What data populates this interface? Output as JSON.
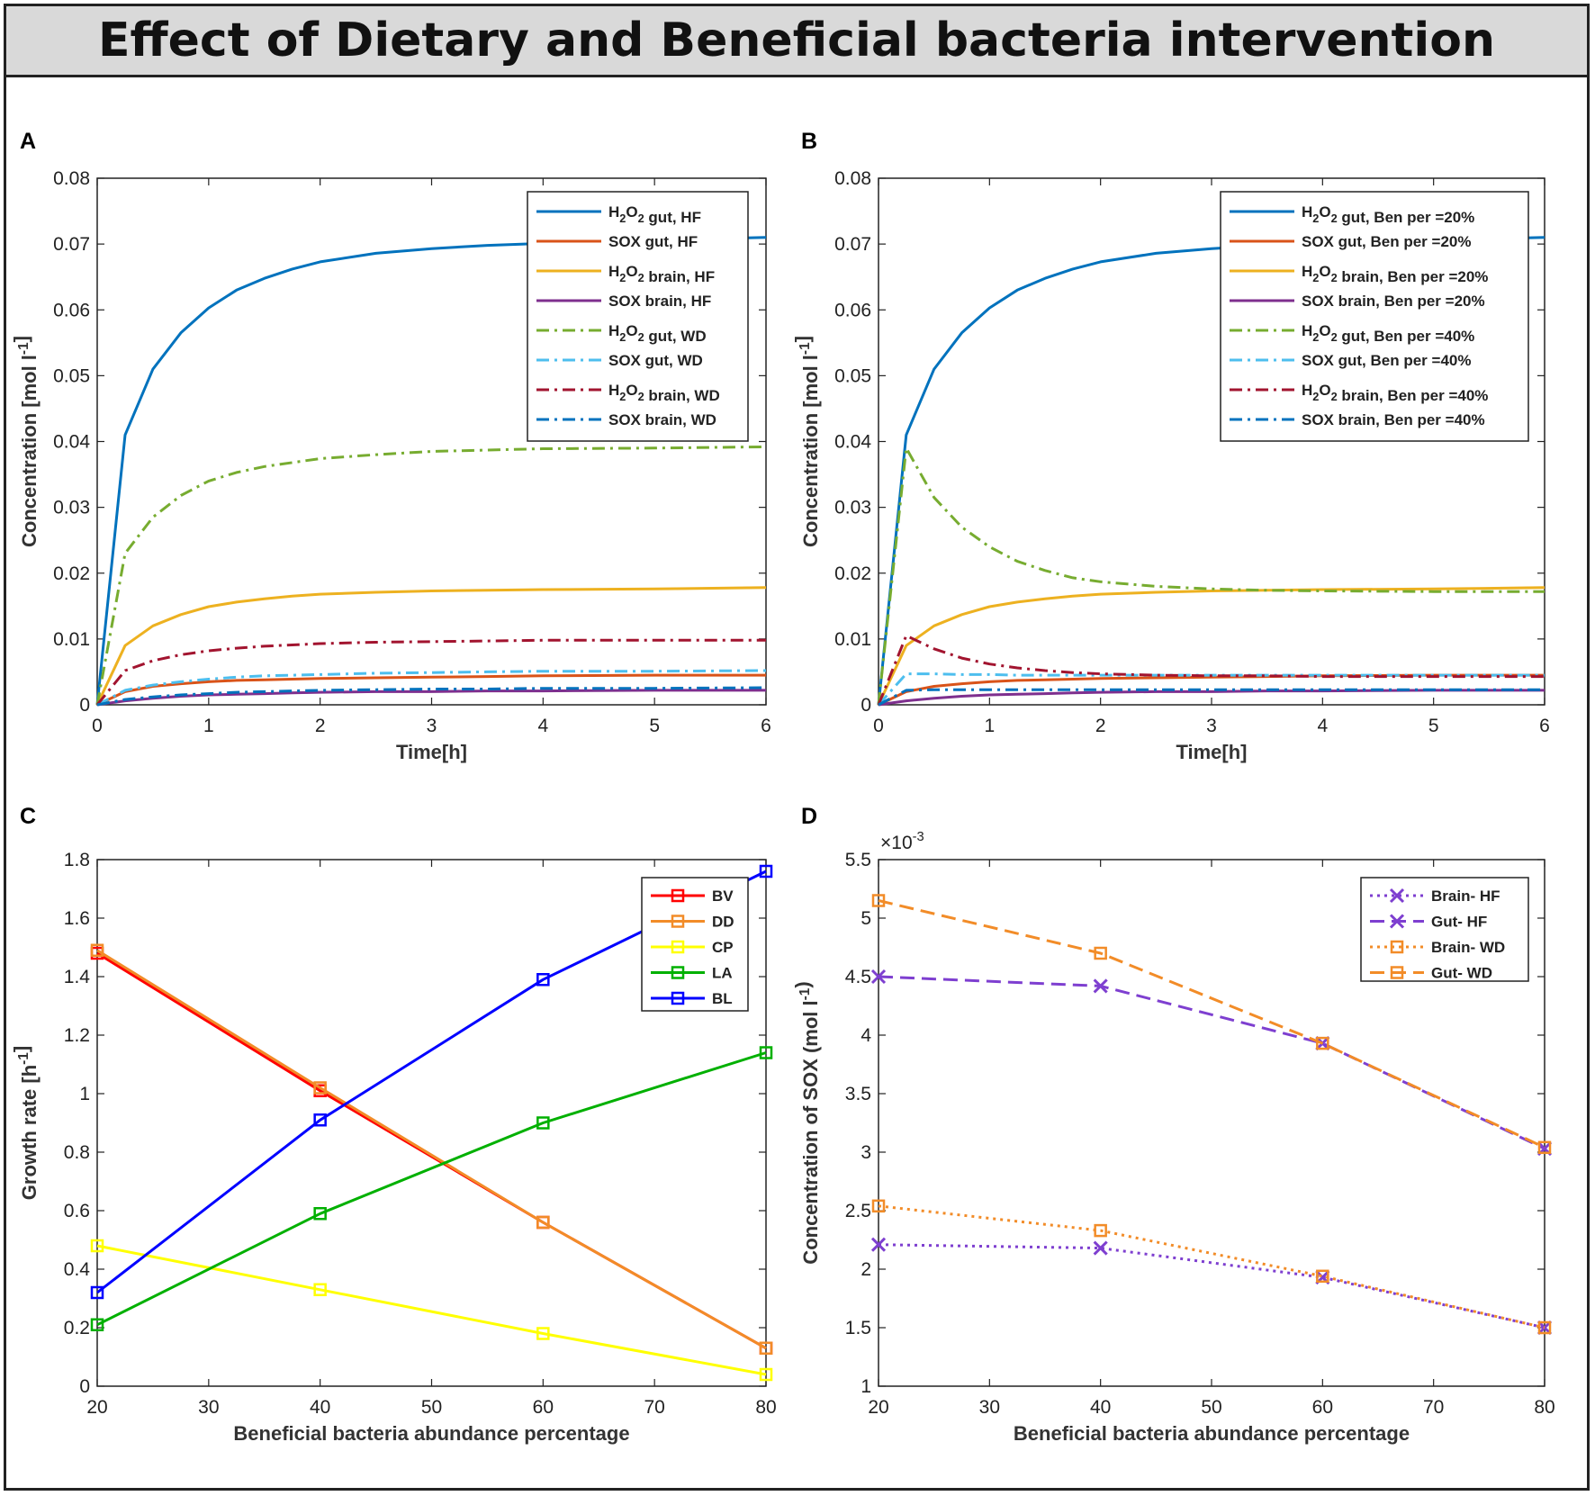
{
  "title": "Effect of Dietary and Beneficial bacteria intervention",
  "panels": [
    "A",
    "B",
    "C",
    "D"
  ],
  "chart_data": [
    {
      "panel": "A",
      "type": "line",
      "xlabel": "Time[h]",
      "ylabel": "Concentration [mol l-1]",
      "xlim": [
        0,
        6
      ],
      "ylim": [
        0,
        0.08
      ],
      "xticks": [
        "0",
        "1",
        "2",
        "3",
        "4",
        "5",
        "6"
      ],
      "yticks": [
        "0",
        "0.01",
        "0.02",
        "0.03",
        "0.04",
        "0.05",
        "0.06",
        "0.07",
        "0.08"
      ],
      "legend_position": "top-right",
      "x": [
        0,
        0.25,
        0.5,
        0.75,
        1,
        1.25,
        1.5,
        1.75,
        2,
        2.5,
        3,
        3.5,
        4,
        5,
        6
      ],
      "series": [
        {
          "name": "H2O2 gut, HF",
          "color": "#0072BD",
          "style": "solid",
          "values": [
            0,
            0.041,
            0.051,
            0.0565,
            0.0603,
            0.063,
            0.0648,
            0.0662,
            0.0673,
            0.0686,
            0.0693,
            0.0698,
            0.0701,
            0.0706,
            0.071
          ]
        },
        {
          "name": "SOX gut, HF",
          "color": "#D95319",
          "style": "solid",
          "values": [
            0,
            0.002,
            0.0028,
            0.0032,
            0.0035,
            0.0037,
            0.0038,
            0.0039,
            0.004,
            0.0041,
            0.0042,
            0.0043,
            0.0044,
            0.0045,
            0.0045
          ]
        },
        {
          "name": "H2O2 brain, HF",
          "color": "#EDB120",
          "style": "solid",
          "values": [
            0,
            0.009,
            0.012,
            0.0137,
            0.0149,
            0.0156,
            0.0161,
            0.0165,
            0.0168,
            0.0171,
            0.0173,
            0.0174,
            0.0175,
            0.0176,
            0.0178
          ]
        },
        {
          "name": "SOX brain, HF",
          "color": "#7E2F8E",
          "style": "solid",
          "values": [
            0,
            0.0006,
            0.001,
            0.0013,
            0.0015,
            0.0016,
            0.0017,
            0.0018,
            0.0019,
            0.002,
            0.002,
            0.0021,
            0.0021,
            0.0022,
            0.0022
          ]
        },
        {
          "name": "H2O2 gut, WD",
          "color": "#77AC30",
          "style": "dashdot",
          "values": [
            0,
            0.023,
            0.0285,
            0.0318,
            0.034,
            0.0353,
            0.0362,
            0.0368,
            0.0374,
            0.038,
            0.0385,
            0.0387,
            0.0389,
            0.039,
            0.0392
          ]
        },
        {
          "name": "SOX gut, WD",
          "color": "#4DBEEE",
          "style": "dashdot",
          "values": [
            0,
            0.0022,
            0.003,
            0.0035,
            0.0039,
            0.0042,
            0.0044,
            0.0045,
            0.0046,
            0.0048,
            0.0049,
            0.005,
            0.0051,
            0.0051,
            0.0052
          ]
        },
        {
          "name": "H2O2 brain, WD",
          "color": "#A2142F",
          "style": "dashdot",
          "values": [
            0,
            0.0052,
            0.0067,
            0.0076,
            0.0082,
            0.0086,
            0.0089,
            0.0091,
            0.0093,
            0.0095,
            0.0096,
            0.0097,
            0.0098,
            0.0098,
            0.0098
          ]
        },
        {
          "name": "SOX brain, WD",
          "color": "#0072BD",
          "style": "dashdot",
          "values": [
            0,
            0.0008,
            0.0012,
            0.0015,
            0.0017,
            0.0019,
            0.002,
            0.0021,
            0.0022,
            0.0023,
            0.0024,
            0.0024,
            0.0025,
            0.0025,
            0.0026
          ]
        }
      ]
    },
    {
      "panel": "B",
      "type": "line",
      "xlabel": "Time[h]",
      "ylabel": "Concentration [mol l-1]",
      "xlim": [
        0,
        6
      ],
      "ylim": [
        0,
        0.08
      ],
      "xticks": [
        "0",
        "1",
        "2",
        "3",
        "4",
        "5",
        "6"
      ],
      "yticks": [
        "0",
        "0.01",
        "0.02",
        "0.03",
        "0.04",
        "0.05",
        "0.06",
        "0.07",
        "0.08"
      ],
      "legend_position": "top-right",
      "x": [
        0,
        0.25,
        0.5,
        0.75,
        1,
        1.25,
        1.5,
        1.75,
        2,
        2.5,
        3,
        3.5,
        4,
        5,
        6
      ],
      "series": [
        {
          "name": "H2O2 gut, Ben per =20%",
          "color": "#0072BD",
          "style": "solid",
          "values": [
            0,
            0.041,
            0.051,
            0.0565,
            0.0603,
            0.063,
            0.0648,
            0.0662,
            0.0673,
            0.0686,
            0.0693,
            0.0698,
            0.0701,
            0.0706,
            0.071
          ]
        },
        {
          "name": "SOX gut, Ben per =20%",
          "color": "#D95319",
          "style": "solid",
          "values": [
            0,
            0.002,
            0.0028,
            0.0032,
            0.0035,
            0.0037,
            0.0038,
            0.0039,
            0.004,
            0.0041,
            0.0042,
            0.0043,
            0.0044,
            0.0045,
            0.0045
          ]
        },
        {
          "name": "H2O2 brain, Ben per =20%",
          "color": "#EDB120",
          "style": "solid",
          "values": [
            0,
            0.009,
            0.012,
            0.0137,
            0.0149,
            0.0156,
            0.0161,
            0.0165,
            0.0168,
            0.0171,
            0.0173,
            0.0174,
            0.0175,
            0.0176,
            0.0178
          ]
        },
        {
          "name": "SOX brain, Ben per =20%",
          "color": "#7E2F8E",
          "style": "solid",
          "values": [
            0,
            0.0006,
            0.001,
            0.0013,
            0.0015,
            0.0016,
            0.0017,
            0.0018,
            0.0019,
            0.002,
            0.002,
            0.0021,
            0.0021,
            0.0022,
            0.0022
          ]
        },
        {
          "name": "H2O2 gut, Ben per =40%",
          "color": "#77AC30",
          "style": "dashdot",
          "values": [
            0,
            0.039,
            0.0315,
            0.027,
            0.024,
            0.0218,
            0.0204,
            0.0193,
            0.0187,
            0.018,
            0.0176,
            0.0174,
            0.0173,
            0.0172,
            0.0172
          ]
        },
        {
          "name": "SOX gut, Ben per =40%",
          "color": "#4DBEEE",
          "style": "dashdot",
          "values": [
            0,
            0.0047,
            0.0047,
            0.0046,
            0.0046,
            0.0045,
            0.0045,
            0.0045,
            0.0045,
            0.0045,
            0.0045,
            0.0045,
            0.0045,
            0.0045,
            0.0045
          ]
        },
        {
          "name": "H2O2 brain, Ben per =40%",
          "color": "#A2142F",
          "style": "dashdot",
          "values": [
            0,
            0.0105,
            0.0085,
            0.0071,
            0.0062,
            0.0056,
            0.0052,
            0.0049,
            0.0047,
            0.0045,
            0.0044,
            0.0044,
            0.0043,
            0.0043,
            0.0043
          ]
        },
        {
          "name": "SOX brain, Ben per =40%",
          "color": "#0072BD",
          "style": "dashdot",
          "values": [
            0,
            0.0022,
            0.0023,
            0.0023,
            0.0023,
            0.0023,
            0.0023,
            0.0023,
            0.0023,
            0.0023,
            0.0023,
            0.0023,
            0.0023,
            0.0023,
            0.0023
          ]
        }
      ]
    },
    {
      "panel": "C",
      "type": "line",
      "xlabel": "Beneficial bacteria abundance percentage",
      "ylabel": "Growth rate [h-1]",
      "xlim": [
        20,
        80
      ],
      "ylim": [
        0,
        1.8
      ],
      "xticks": [
        "20",
        "30",
        "40",
        "50",
        "60",
        "70",
        "80"
      ],
      "yticks": [
        "0",
        "0.2",
        "0.4",
        "0.6",
        "0.8",
        "1",
        "1.2",
        "1.4",
        "1.6",
        "1.8"
      ],
      "legend_position": "top-right",
      "marker": "square",
      "x": [
        20,
        40,
        60,
        80
      ],
      "series": [
        {
          "name": "BV",
          "color": "#FF0000",
          "values": [
            1.48,
            1.01,
            0.56,
            0.13
          ]
        },
        {
          "name": "DD",
          "color": "#F28C28",
          "values": [
            1.49,
            1.02,
            0.56,
            0.13
          ]
        },
        {
          "name": "CP",
          "color": "#FFFF00",
          "values": [
            0.48,
            0.33,
            0.18,
            0.04
          ]
        },
        {
          "name": "LA",
          "color": "#00B000",
          "values": [
            0.21,
            0.59,
            0.9,
            1.14
          ]
        },
        {
          "name": "BL",
          "color": "#0000FF",
          "values": [
            0.32,
            0.91,
            1.39,
            1.76
          ]
        }
      ]
    },
    {
      "panel": "D",
      "type": "line",
      "xlabel": "Beneficial bacteria abundance percentage",
      "ylabel": "Concentration of SOX (mol l-1)",
      "exponent": "×10-3",
      "xlim": [
        20,
        80
      ],
      "ylim": [
        1,
        5.5
      ],
      "xticks": [
        "20",
        "30",
        "40",
        "50",
        "60",
        "70",
        "80"
      ],
      "yticks": [
        "1",
        "1.5",
        "2",
        "2.5",
        "3",
        "3.5",
        "4",
        "4.5",
        "5",
        "5.5"
      ],
      "legend_position": "top-right",
      "x": [
        20,
        40,
        60,
        80
      ],
      "series": [
        {
          "name": "Brain- HF",
          "color": "#7E3FD0",
          "style": "dotted",
          "marker": "x",
          "values": [
            2.21,
            2.18,
            1.93,
            1.5
          ]
        },
        {
          "name": "Gut- HF",
          "color": "#7E3FD0",
          "style": "dashed",
          "marker": "x",
          "values": [
            4.5,
            4.42,
            3.93,
            3.03
          ]
        },
        {
          "name": "Brain- WD",
          "color": "#F28C28",
          "style": "dotted",
          "marker": "square",
          "values": [
            2.54,
            2.33,
            1.94,
            1.5
          ]
        },
        {
          "name": "Gut- WD",
          "color": "#F28C28",
          "style": "dashed",
          "marker": "square",
          "values": [
            5.15,
            4.7,
            3.93,
            3.04
          ]
        }
      ]
    }
  ]
}
